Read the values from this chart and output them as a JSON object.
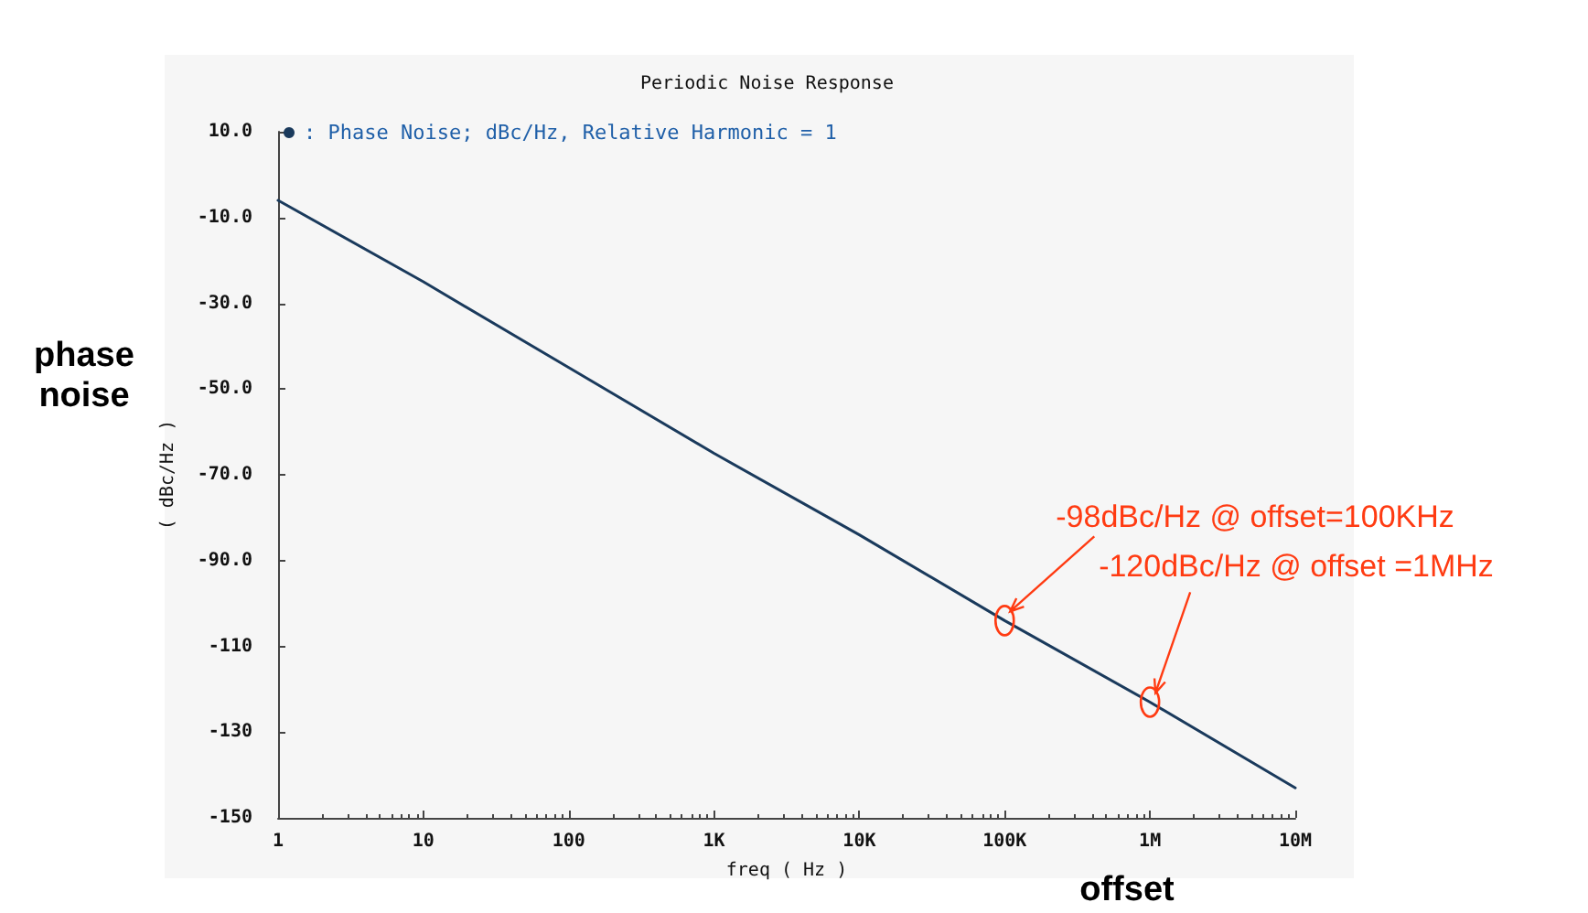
{
  "chart_data": {
    "type": "line",
    "title": "Periodic Noise Response",
    "xlabel": "freq ( Hz )",
    "ylabel": "( dBc/Hz )",
    "x": [
      1,
      10,
      100,
      1000,
      10000,
      100000,
      1000000,
      10000000
    ],
    "series": [
      {
        "name": ": Phase Noise; dBc/Hz, Relative Harmonic = 1",
        "color": "#1a3a5c",
        "values": [
          -6,
          -25,
          -45,
          -65,
          -84,
          -104,
          -123,
          -143
        ]
      }
    ],
    "log": "x",
    "xlim": [
      1,
      10000000
    ],
    "xticks": [
      1,
      10,
      100,
      {
        "value": 1000,
        "label": "1K"
      },
      {
        "value": 10000,
        "label": "10K"
      },
      {
        "value": 100000,
        "label": "100K"
      },
      {
        "value": 1000000,
        "label": "1M"
      },
      {
        "value": 10000000,
        "label": "10M"
      }
    ],
    "ylim": [
      -150,
      10
    ],
    "yticks": [
      -150,
      -130,
      -110,
      {
        "value": -90,
        "label": "-90.0"
      },
      {
        "value": -70,
        "label": "-70.0"
      },
      {
        "value": -50,
        "label": "-50.0"
      },
      {
        "value": -30,
        "label": "-30.0"
      },
      {
        "value": -10,
        "label": "-10.0"
      },
      {
        "value": 10,
        "label": "10.0"
      }
    ],
    "grid": false,
    "legend": "top left",
    "marker": "none",
    "line_style": "solid",
    "annotations": [
      "phase noise",
      "offset",
      {
        "text": "-98dBc/Hz @ offset=100KHz",
        "x": 100000,
        "y": -104
      },
      {
        "text": "-120dBc/Hz @ offset =1MHz",
        "x": 1000000,
        "y": -123
      }
    ]
  }
}
